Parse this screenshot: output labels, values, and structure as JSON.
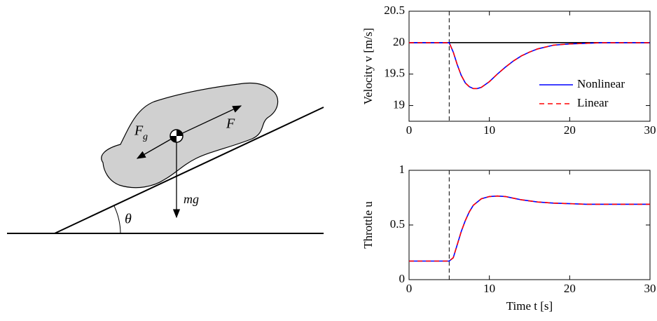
{
  "diagram": {
    "force_labels": [
      "F",
      "g",
      "F",
      "mg"
    ],
    "angle_label": "θ"
  },
  "chart_data": [
    {
      "type": "line",
      "ylabel": "Velocity v [m/s]",
      "x": [
        0,
        5,
        5.5,
        6,
        6.5,
        7,
        7.5,
        8,
        8.5,
        9,
        10,
        11,
        12,
        13,
        14,
        15,
        16,
        17,
        18,
        19,
        20,
        22,
        24,
        26,
        28,
        30
      ],
      "series": [
        {
          "name": "Nonlinear",
          "color": "#0000ff",
          "linestyle": "solid",
          "values": [
            20,
            20,
            19.85,
            19.65,
            19.48,
            19.36,
            19.3,
            19.27,
            19.27,
            19.29,
            19.38,
            19.5,
            19.61,
            19.71,
            19.79,
            19.85,
            19.9,
            19.93,
            19.96,
            19.97,
            19.98,
            19.99,
            20,
            20,
            20,
            20
          ]
        },
        {
          "name": "Linear",
          "color": "#ff0000",
          "linestyle": "dashed",
          "values": [
            20,
            20,
            19.85,
            19.65,
            19.48,
            19.36,
            19.3,
            19.27,
            19.27,
            19.29,
            19.38,
            19.5,
            19.61,
            19.71,
            19.79,
            19.85,
            19.9,
            19.93,
            19.96,
            19.97,
            19.98,
            19.99,
            20,
            20,
            20,
            20
          ]
        }
      ],
      "hline": 20,
      "vline": 5,
      "xlim": [
        0,
        30
      ],
      "xticks": [
        0,
        10,
        20,
        30
      ],
      "ylim": [
        18.75,
        20.5
      ],
      "yticks": [
        19,
        19.5,
        20,
        20.5
      ],
      "legend": "lower right"
    },
    {
      "type": "line",
      "ylabel": "Throttle u",
      "xlabel": "Time t [s]",
      "x": [
        0,
        5,
        5.5,
        6,
        6.5,
        7,
        7.5,
        8,
        9,
        10,
        11,
        12,
        13,
        14,
        16,
        18,
        20,
        22,
        25,
        30
      ],
      "series": [
        {
          "color": "#0000ff",
          "linestyle": "solid",
          "values": [
            0.17,
            0.17,
            0.2,
            0.32,
            0.44,
            0.54,
            0.62,
            0.68,
            0.74,
            0.76,
            0.765,
            0.76,
            0.745,
            0.73,
            0.71,
            0.7,
            0.695,
            0.69,
            0.69,
            0.69
          ]
        },
        {
          "color": "#ff0000",
          "linestyle": "dashed",
          "values": [
            0.17,
            0.17,
            0.2,
            0.32,
            0.44,
            0.54,
            0.62,
            0.68,
            0.74,
            0.76,
            0.765,
            0.76,
            0.745,
            0.73,
            0.71,
            0.7,
            0.695,
            0.69,
            0.69,
            0.69
          ]
        }
      ],
      "vline": 5,
      "xlim": [
        0,
        30
      ],
      "xticks": [
        0,
        10,
        20,
        30
      ],
      "ylim": [
        0,
        1
      ],
      "yticks": [
        0,
        0.5,
        1
      ],
      "legend": "none"
    }
  ]
}
